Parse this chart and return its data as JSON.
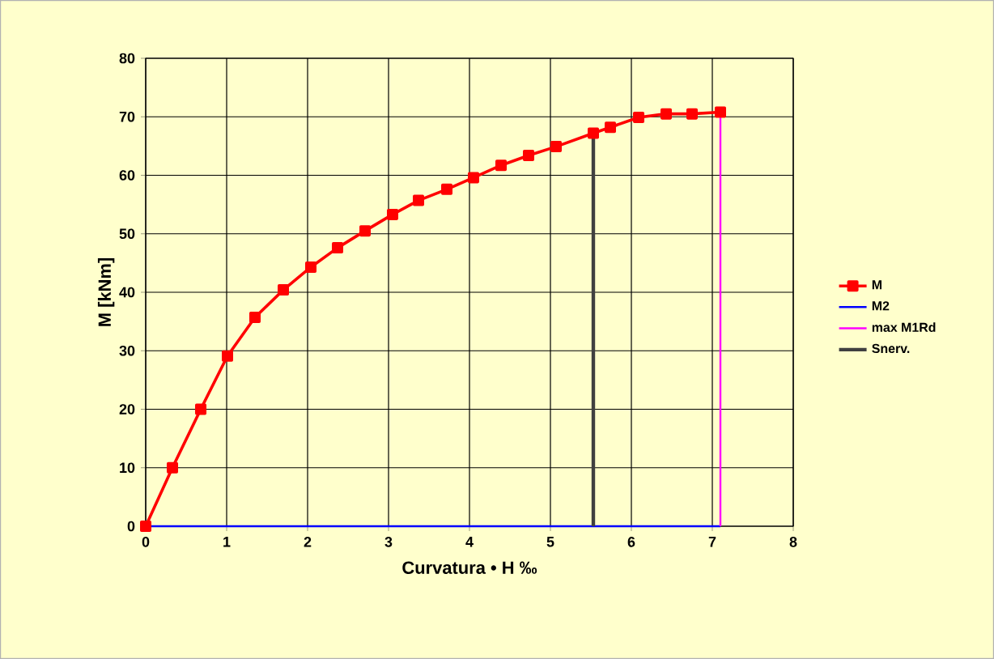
{
  "chart_data": {
    "type": "line",
    "xlabel": "Curvatura • H ‰",
    "ylabel": "M [kNm]",
    "xlim": [
      0,
      8
    ],
    "ylim": [
      0,
      80
    ],
    "xticks": [
      0,
      1,
      2,
      3,
      4,
      5,
      6,
      7,
      8
    ],
    "yticks": [
      0,
      10,
      20,
      30,
      40,
      50,
      60,
      70,
      80
    ],
    "grid": true,
    "legend": "right",
    "series": [
      {
        "name": "M",
        "color": "#ff0000",
        "marker": "square",
        "x": [
          0,
          0.33,
          0.68,
          1.01,
          1.35,
          1.7,
          2.04,
          2.37,
          2.71,
          3.05,
          3.37,
          3.72,
          4.05,
          4.39,
          4.73,
          5.07,
          5.53,
          5.74,
          6.09,
          6.43,
          6.75,
          7.1
        ],
        "values": [
          0,
          10,
          20,
          29.1,
          35.7,
          40.4,
          44.3,
          47.6,
          50.5,
          53.3,
          55.7,
          57.6,
          59.6,
          61.7,
          63.4,
          64.9,
          67.2,
          68.2,
          69.9,
          70.5,
          70.5,
          70.8
        ]
      },
      {
        "name": "M2",
        "color": "#0000ff",
        "marker": "none",
        "x": [
          0,
          7.1
        ],
        "values": [
          0,
          0
        ]
      },
      {
        "name": "max M1Rd",
        "color": "#ff00ff",
        "marker": "none",
        "x": [
          7.1,
          7.1
        ],
        "values": [
          0,
          70.8
        ]
      },
      {
        "name": "Snerv.",
        "color": "#404040",
        "marker": "none",
        "x": [
          5.53,
          5.53
        ],
        "values": [
          0,
          67.2
        ]
      }
    ]
  }
}
